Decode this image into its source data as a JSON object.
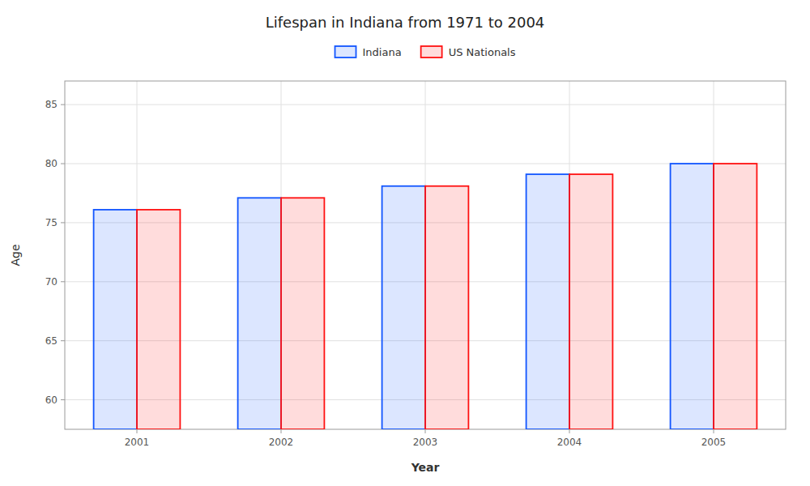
{
  "chart_data": {
    "type": "bar",
    "title": "Lifespan in Indiana from 1971 to 2004",
    "xlabel": "Year",
    "ylabel": "Age",
    "categories": [
      "2001",
      "2002",
      "2003",
      "2004",
      "2005"
    ],
    "series": [
      {
        "name": "Indiana",
        "color": "#1155ff",
        "values": [
          76.1,
          77.1,
          78.1,
          79.1,
          80.0
        ]
      },
      {
        "name": "US Nationals",
        "color": "#ff1111",
        "values": [
          76.1,
          77.1,
          78.1,
          79.1,
          80.0
        ]
      }
    ],
    "ylim": [
      57.5,
      87
    ],
    "yticks": [
      60,
      65,
      70,
      75,
      80,
      85
    ],
    "grid": true,
    "legend": "top"
  }
}
